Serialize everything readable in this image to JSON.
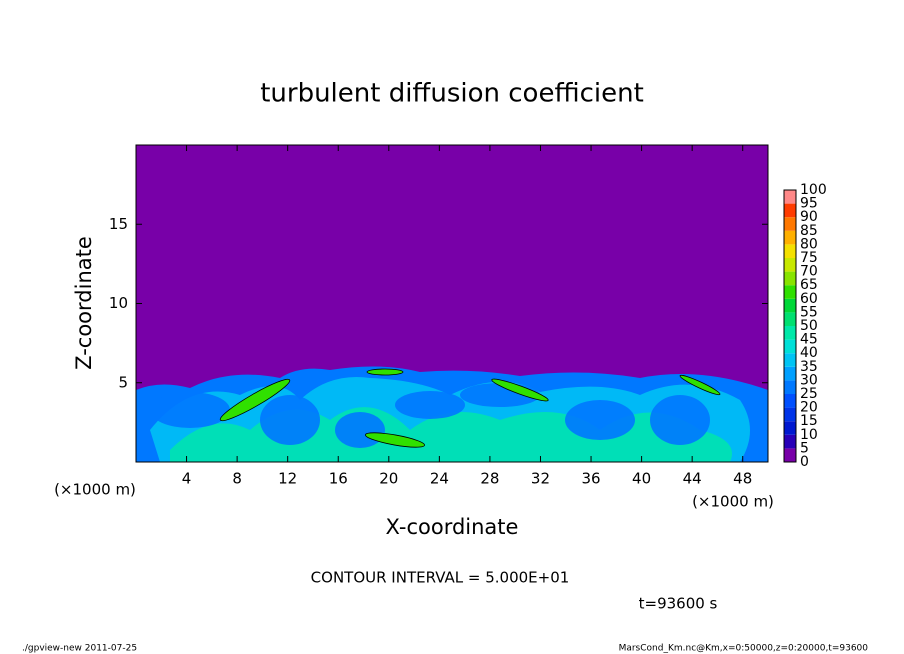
{
  "chart_data": {
    "type": "heatmap",
    "title": "turbulent diffusion coefficient",
    "xlabel": "X-coordinate",
    "ylabel": "Z-coordinate",
    "x_unit": "(×1000 m)",
    "y_unit": "(×1000 m)",
    "xlim": [
      0,
      50
    ],
    "xticks": [
      4,
      8,
      12,
      16,
      20,
      24,
      28,
      32,
      36,
      40,
      44,
      48
    ],
    "ylim": [
      0,
      20
    ],
    "yticks": [
      5,
      10,
      15
    ],
    "colorbar": {
      "levels": [
        0,
        5,
        10,
        15,
        20,
        25,
        30,
        35,
        40,
        45,
        50,
        55,
        60,
        65,
        70,
        75,
        80,
        85,
        90,
        95,
        100
      ],
      "colors": [
        "#7800a8",
        "#2800b8",
        "#0018d0",
        "#0034e8",
        "#0050ff",
        "#0078ff",
        "#00a0ff",
        "#00c4f4",
        "#00e0d8",
        "#00e8a8",
        "#00e070",
        "#00d838",
        "#30e000",
        "#88e400",
        "#c8e800",
        "#f4e000",
        "#ffb000",
        "#ff7800",
        "#ff3c00",
        "#ff8888"
      ]
    },
    "contour_interval": "CONTOUR INTERVAL = 5.000E+01",
    "time_label": "t=93600 s",
    "footer_left": "./gpview-new  2011-07-25",
    "footer_right": "MarsCond_Km.nc@Km,x=0:50000,z=0:20000,t=93600"
  }
}
